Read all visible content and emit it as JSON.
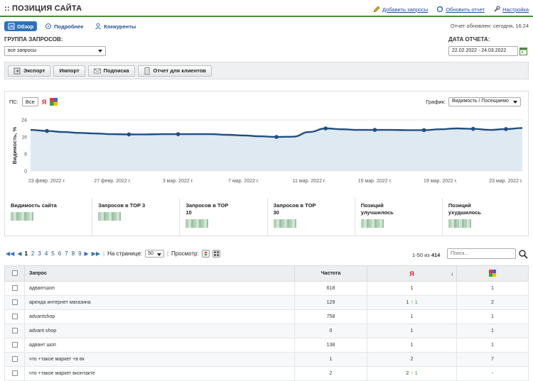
{
  "header": {
    "title": ":: ПОЗИЦИЯ САЙТА",
    "links": [
      "Добавить запросы",
      "Обновить отчет",
      "Настройка"
    ]
  },
  "tabs": [
    "Обзор",
    "Подробнее",
    "Конкуренты"
  ],
  "updated": "Отчет обновлен: сегодня, 16:24",
  "filters": {
    "group_label": "ГРУППА ЗАПРОСОВ:",
    "group_value": "все запросы",
    "date_label": "ДАТА ОТЧЕТА:",
    "date_value": "22.02.2022 - 24.03.2022"
  },
  "toolbar": [
    "Экспорт",
    "Импорт",
    "Подписка",
    "Отчет для клиентов"
  ],
  "chart_controls": {
    "ps_label": "ПС:",
    "ps_all": "Все",
    "ps_yandex": "Я",
    "graph_label": "График:",
    "graph_value": "Видимость / Посещаемо"
  },
  "chart_data": {
    "type": "area",
    "ylabel": "Видимость, %",
    "ylim": [
      0,
      24
    ],
    "yticks": [
      0,
      8,
      16,
      24
    ],
    "xtick_labels": [
      "23 февр. 2022 г.",
      "27 февр. 2022 г.",
      "3 мар. 2022 г.",
      "7 мар. 2022 г.",
      "11 мар. 2022 г.",
      "15 мар. 2022 г.",
      "19 мар. 2022 г.",
      "23 мар. 2022 г."
    ],
    "x": [
      "22.02",
      "23.02",
      "24.02",
      "25.02",
      "26.02",
      "27.02",
      "28.02",
      "01.03",
      "02.03",
      "03.03",
      "04.03",
      "05.03",
      "06.03",
      "07.03",
      "08.03",
      "09.03",
      "10.03",
      "11.03",
      "12.03",
      "13.03",
      "14.03",
      "15.03",
      "16.03",
      "17.03",
      "18.03",
      "19.03",
      "20.03",
      "21.03",
      "22.03",
      "23.03",
      "24.03"
    ],
    "values": [
      19.3,
      18.8,
      18.3,
      17.9,
      17.6,
      17.3,
      17.2,
      17.2,
      17.3,
      17.3,
      17.3,
      17.3,
      17.0,
      16.7,
      16.3,
      16.0,
      16.1,
      18.3,
      20.0,
      19.6,
      19.3,
      19.3,
      19.3,
      19.2,
      19.2,
      19.6,
      20.0,
      19.8,
      19.3,
      19.7,
      20.2
    ],
    "markers": [
      1,
      6,
      9,
      15,
      18,
      21,
      24,
      27,
      29,
      31
    ],
    "color": "#1f4e84",
    "fill": "#dfe9f2",
    "grid": true
  },
  "stats": [
    {
      "label": "Видимость сайта"
    },
    {
      "label": "Запросов в TOP 3"
    },
    {
      "label": "Запросов в TOP 10"
    },
    {
      "label": "Запросов в TOP 30"
    },
    {
      "label": "Позиций улучшилось"
    },
    {
      "label": "Позиций ухудшилось"
    }
  ],
  "pager": {
    "pages": [
      "1",
      "2",
      "3",
      "4",
      "5",
      "6",
      "7",
      "8",
      "9"
    ],
    "per_page_label": "На странице:",
    "per_page_value": "50",
    "view_label": "Просмотр:",
    "range_prefix": "1-50 из",
    "range_total": "414",
    "search_placeholder": "Поиск..."
  },
  "table": {
    "headers": [
      "Запрос",
      "Частота",
      "Я",
      "↓",
      ""
    ],
    "rows": [
      {
        "query": "адвантшоп",
        "freq": "618",
        "ya": "1",
        "ya_change": "",
        "g": "1"
      },
      {
        "query": "аренда интернет магазина",
        "freq": "129",
        "ya": "1",
        "ya_change": "↑ 1",
        "g": "2"
      },
      {
        "query": "advantshop",
        "freq": "758",
        "ya": "1",
        "ya_change": "",
        "g": "1"
      },
      {
        "query": "advant shop",
        "freq": "0",
        "ya": "1",
        "ya_change": "",
        "g": "1"
      },
      {
        "query": "адвант шоп",
        "freq": "138",
        "ya": "1",
        "ya_change": "",
        "g": "1"
      },
      {
        "query": "что +такое маркет +в вк",
        "freq": "1",
        "ya": "2",
        "ya_change": "",
        "g": "7"
      },
      {
        "query": "что +такое маркет вконтакте",
        "freq": "2",
        "ya": "2",
        "ya_change": "↑ 1",
        "g": "-"
      }
    ]
  }
}
